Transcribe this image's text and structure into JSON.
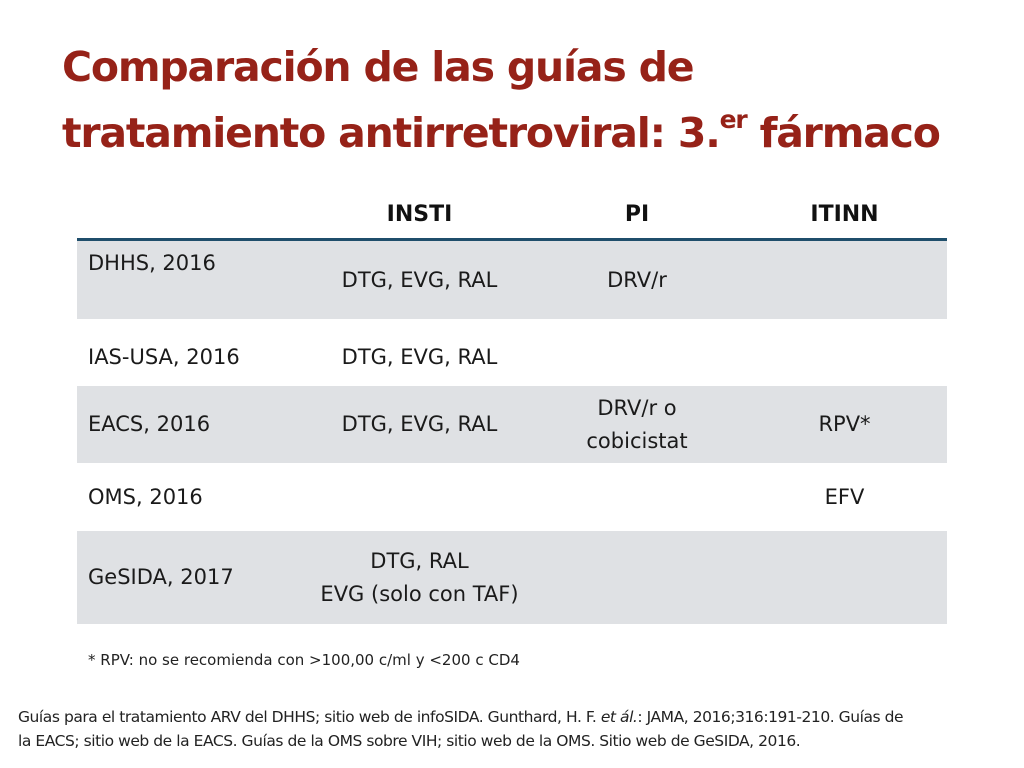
{
  "slide": {
    "title_line1": "Comparación de las guías de",
    "title_line2_main": "tratamiento antirretroviral: 3.",
    "title_line2_sup": "er",
    "title_line2_end": " fármaco"
  },
  "table": {
    "headers": [
      "",
      "INSTI",
      "PI",
      "ITINN"
    ],
    "rows": [
      {
        "guide": "DHHS, 2016",
        "insti": "DTG, EVG, RAL",
        "pi": "DRV/r",
        "itinn": ""
      },
      {
        "guide": "IAS-USA, 2016",
        "insti": "DTG, EVG, RAL",
        "pi": "",
        "itinn": ""
      },
      {
        "guide": "EACS, 2016",
        "insti": "DTG, EVG, RAL",
        "pi_line1": "DRV/r o",
        "pi_line2": "cobicistat",
        "itinn": "RPV*"
      },
      {
        "guide": "OMS, 2016",
        "insti": "",
        "pi": "",
        "itinn": "EFV"
      },
      {
        "guide": "GeSIDA, 2017",
        "insti_line1": "DTG, RAL",
        "insti_line2": "EVG (solo con TAF)",
        "pi": "",
        "itinn": ""
      }
    ]
  },
  "footnote": "* RPV: no se recomienda con >100,00 c/ml  y <200 c CD4",
  "references": {
    "line1": "Guías para el tratamiento ARV del DHHS; sitio web de infoSIDA. Gunthard, H. F. ",
    "line1_italic": "et ál.",
    "line1_end": ": JAMA, 2016;316:191-210. Guías de",
    "line2": "la EACS; sitio web de la EACS. Guías de la OMS sobre VIH; sitio web de la OMS. Sitio web de GeSIDA, 2016."
  },
  "colors": {
    "title": "#962218",
    "header_rule": "#1f4e6b",
    "row_shade": "#dfe1e4"
  }
}
